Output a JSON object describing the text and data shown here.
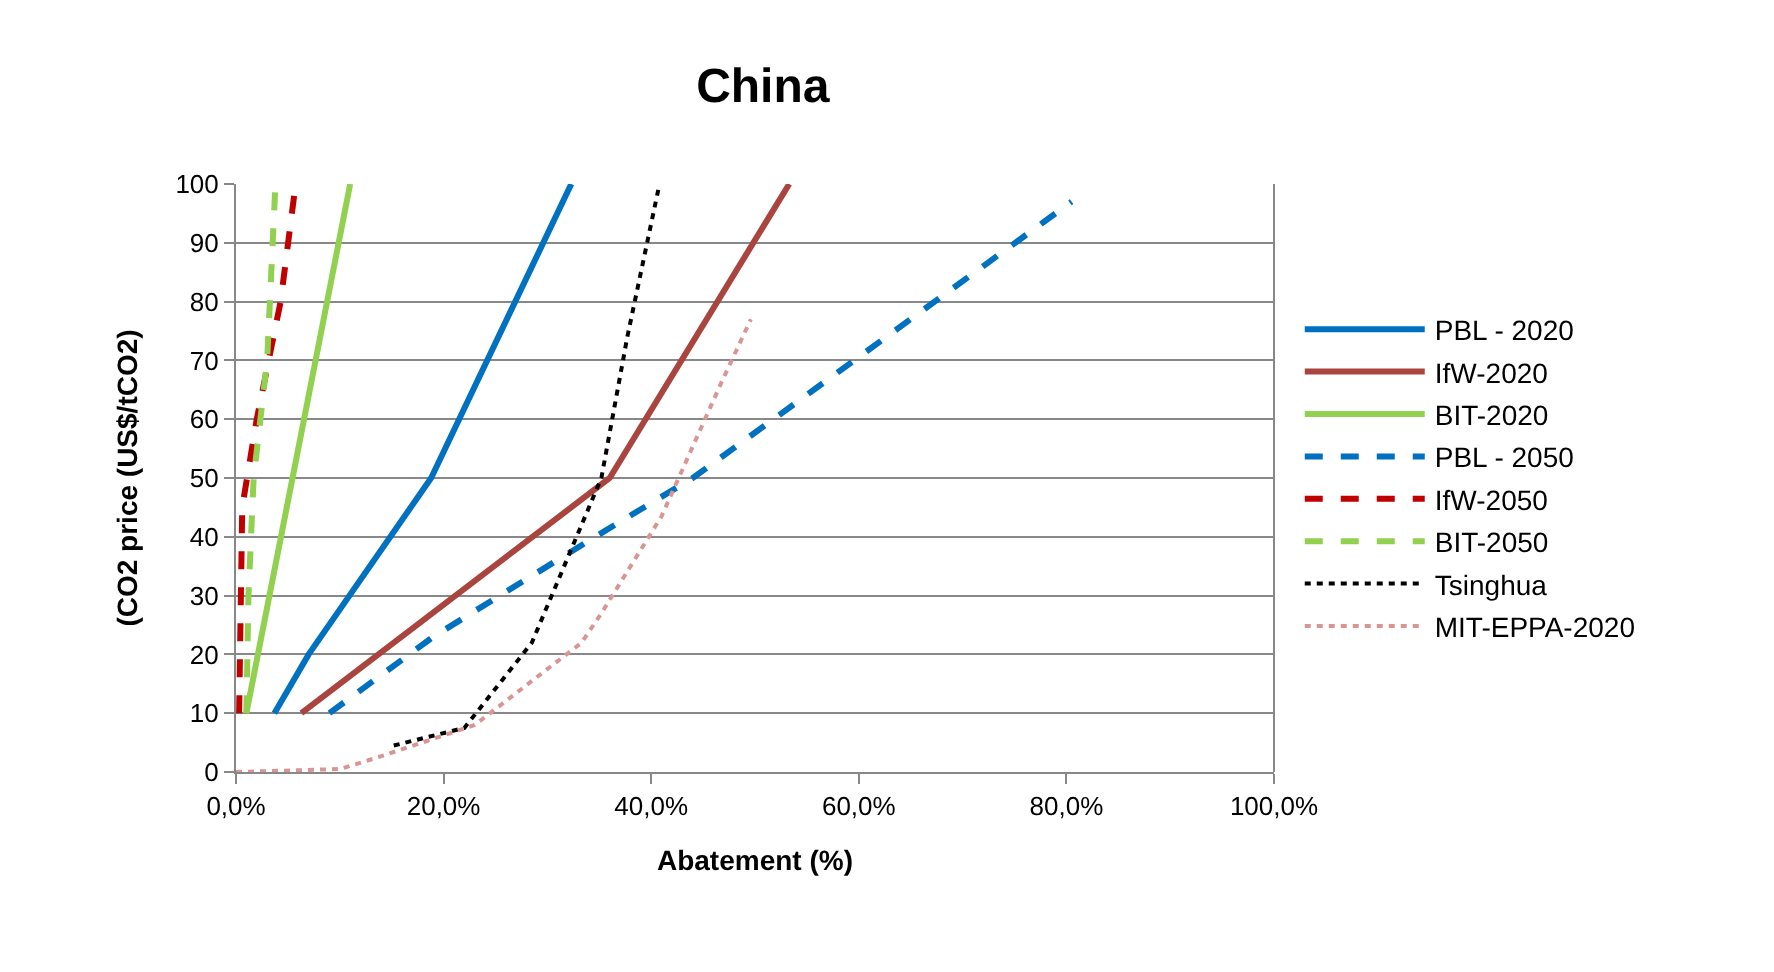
{
  "chart_data": {
    "type": "line",
    "title": "China",
    "xlabel": "Abatement (%)",
    "ylabel": "(CO2 price (US$/tCO2)",
    "xlim": [
      0,
      100
    ],
    "xticks": [
      {
        "value": 0,
        "label": "0,0%"
      },
      {
        "value": 20,
        "label": "20,0%"
      },
      {
        "value": 40,
        "label": "40,0%"
      },
      {
        "value": 60,
        "label": "60,0%"
      },
      {
        "value": 80,
        "label": "80,0%"
      },
      {
        "value": 100,
        "label": "100,0%"
      }
    ],
    "ylim": [
      0,
      100
    ],
    "yticks": [
      0,
      10,
      20,
      30,
      40,
      50,
      60,
      70,
      80,
      90,
      100
    ],
    "grid": "y",
    "legend": "right",
    "marker": "none",
    "series": [
      {
        "name": "PBL - 2020",
        "color": "#0070c0",
        "line_style": "solid",
        "x": [
          3.7,
          7,
          18.8,
          32.3
        ],
        "values": [
          10,
          20,
          50,
          100
        ]
      },
      {
        "name": "IfW-2020",
        "color": "#a9443f",
        "line_style": "solid",
        "x": [
          6.3,
          36,
          53.3
        ],
        "values": [
          10,
          50,
          100
        ]
      },
      {
        "name": "BIT-2020",
        "color": "#92d050",
        "line_style": "solid",
        "x": [
          1,
          11
        ],
        "values": [
          10,
          100
        ]
      },
      {
        "name": "PBL - 2050",
        "color": "#0070c0",
        "line_style": "dashed",
        "x": [
          9,
          19,
          34.6,
          44,
          58,
          80.5
        ],
        "values": [
          10,
          23,
          40,
          50,
          68,
          97
        ]
      },
      {
        "name": "IfW-2050",
        "color": "#c00000",
        "line_style": "dashed",
        "x": [
          0.3,
          0.6,
          2,
          4.3,
          5.6
        ],
        "values": [
          10,
          45,
          60,
          80,
          98
        ]
      },
      {
        "name": "BIT-2050",
        "color": "#92d050",
        "line_style": "dashed",
        "x": [
          1,
          1.2,
          1.7,
          3,
          3.8
        ],
        "values": [
          10,
          30,
          50,
          70,
          100
        ]
      },
      {
        "name": "Tsinghua",
        "color": "#000000",
        "line_style": "dotted",
        "x": [
          15.2,
          22,
          28.5,
          35.2,
          37.7,
          40.8
        ],
        "values": [
          4.5,
          7.5,
          22,
          50,
          74,
          100
        ]
      },
      {
        "name": "MIT-EPPA-2020",
        "color": "#d99594",
        "line_style": "dotted",
        "x": [
          0,
          10,
          13.5,
          23,
          33.3,
          35.2,
          41,
          46.7,
          49.6
        ],
        "values": [
          0,
          0.5,
          2.4,
          8,
          22,
          27,
          43.5,
          66,
          77
        ]
      }
    ]
  }
}
